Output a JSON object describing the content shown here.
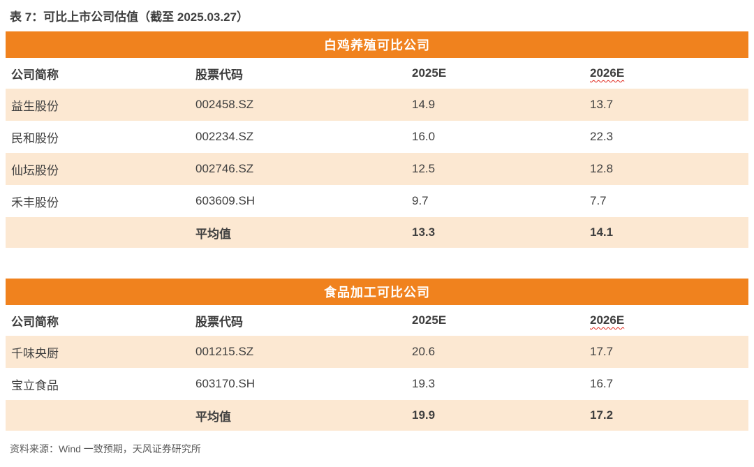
{
  "page": {
    "title": "表 7：可比上市公司估值（截至 2025.03.27）",
    "source": "资料来源：Wind 一致预期，天风证券研究所"
  },
  "colors": {
    "banner_orange": "#F0821E",
    "row_light_orange": "#FCE8D2",
    "text_dark": "#404040",
    "source_gray": "#595959",
    "spellcheck_red": "#E02B20"
  },
  "tables": [
    {
      "banner": "白鸡养殖可比公司",
      "columns": [
        "公司简称",
        "股票代码",
        "2025E",
        "2026E"
      ],
      "rows": [
        [
          "益生股份",
          "002458.SZ",
          "14.9",
          "13.7"
        ],
        [
          "民和股份",
          "002234.SZ",
          "16.0",
          "22.3"
        ],
        [
          "仙坛股份",
          "002746.SZ",
          "12.5",
          "12.8"
        ],
        [
          "禾丰股份",
          "603609.SH",
          "9.7",
          "7.7"
        ]
      ],
      "average": {
        "label": "平均值",
        "values": [
          "13.3",
          "14.1"
        ]
      }
    },
    {
      "banner": "食品加工可比公司",
      "columns": [
        "公司简称",
        "股票代码",
        "2025E",
        "2026E"
      ],
      "rows": [
        [
          "千味央厨",
          "001215.SZ",
          "20.6",
          "17.7"
        ],
        [
          "宝立食品",
          "603170.SH",
          "19.3",
          "16.7"
        ]
      ],
      "average": {
        "label": "平均值",
        "values": [
          "19.9",
          "17.2"
        ]
      }
    }
  ]
}
